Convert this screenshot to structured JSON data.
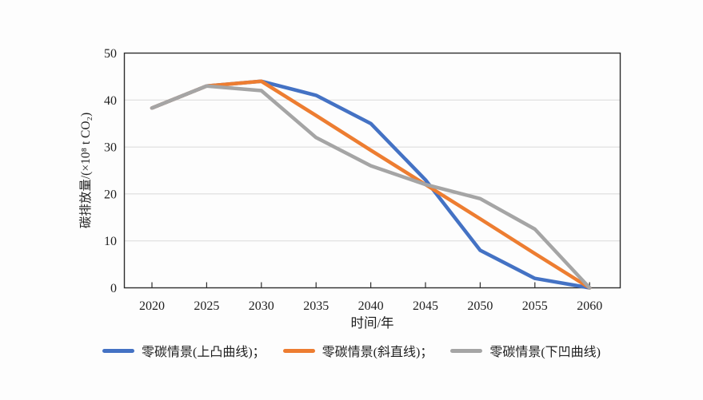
{
  "figure": {
    "background": "#fdfdfd",
    "plot_border_color": "#2e2e2e",
    "gridline_color": "#d9d9d9",
    "text_color": "#1f1f1f"
  },
  "chart_data": {
    "type": "line",
    "title": "",
    "xlabel": "时间/年",
    "ylabel": "碳排放量/(×10⁸ t CO₂)",
    "x": [
      2020,
      2025,
      2030,
      2035,
      2040,
      2045,
      2050,
      2055,
      2060
    ],
    "x_tick_labels": [
      "2020",
      "2025",
      "2030",
      "2035",
      "2040",
      "2045",
      "2050",
      "2055",
      "2060"
    ],
    "y_ticks": [
      0,
      10,
      20,
      30,
      40,
      50
    ],
    "y_tick_labels": [
      "0",
      "10",
      "20",
      "30",
      "40",
      "50"
    ],
    "ylim": [
      0,
      50
    ],
    "xlim": [
      2017.5,
      2062.5
    ],
    "grid": "horizontal",
    "legend_position": "bottom",
    "line_width": 4.5,
    "series": [
      {
        "name": "零碳情景(上凸曲线)；",
        "color": "#4472C4",
        "values": [
          38.3,
          43,
          44,
          41,
          35,
          23,
          8,
          2,
          0
        ]
      },
      {
        "name": "零碳情景(斜直线)；",
        "color": "#ED7D31",
        "values": [
          38.3,
          43,
          44,
          36.7,
          29.3,
          22,
          14.7,
          7.3,
          0
        ]
      },
      {
        "name": "零碳情景(下凹曲线)",
        "color": "#A5A5A5",
        "values": [
          38.3,
          43,
          42,
          32,
          26,
          22,
          19,
          12.5,
          0
        ]
      }
    ]
  }
}
